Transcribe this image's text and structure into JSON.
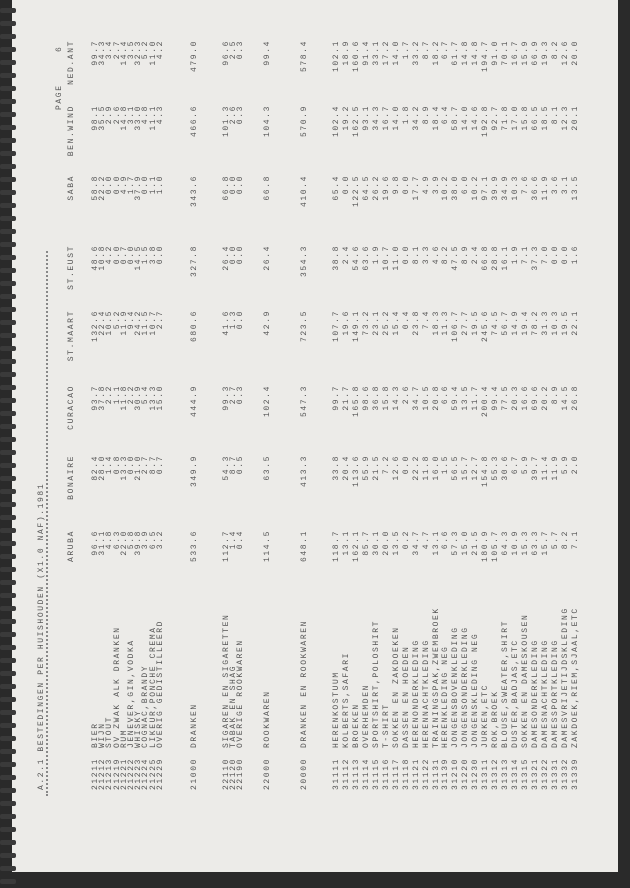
{
  "title": "A.2.1 BESTEDINGEN PER HUISHOUDEN (X1.0 NAF).1981",
  "page_label": "PAGE",
  "page_number": "6",
  "columns": [
    "ARUBA",
    "BONAIRE",
    "CURACAO",
    "ST.MAART",
    "ST.EUST",
    "SABA",
    "BEN.WIND",
    "NED.ANT"
  ],
  "sections": [
    {
      "rows": [
        {
          "code": "21211",
          "label": "BIER",
          "values": [
            "96.6",
            "82.4",
            "93.7",
            "132.6",
            "48.6",
            "58.8",
            "98.1",
            "99.7"
          ]
        },
        {
          "code": "21212",
          "label": "WIJN",
          "values": [
            "31.1",
            "28.0",
            "37.8",
            "22.4",
            "10.8",
            "22.2",
            "35.5",
            "34.3"
          ]
        },
        {
          "code": "21213",
          "label": "STOUT",
          "values": [
            "4.8",
            "1.4",
            "2.2",
            "10.5",
            "4.2",
            "0.0",
            "2.9",
            "3.4"
          ]
        },
        {
          "code": "21219",
          "label": "OV ZWAK ALK DRANKEN",
          "values": [
            "6.3",
            "0.8",
            "1.1",
            "5.2",
            "0.0",
            "0.0",
            "2.6",
            "2.7"
          ]
        },
        {
          "code": "21221",
          "label": "RUM",
          "values": [
            "22.0",
            "13.3",
            "11.8",
            "11.9",
            "0.7",
            "4.9",
            "14.8",
            "14.4"
          ]
        },
        {
          "code": "21222",
          "label": "JENEVER,GIN,VODKA",
          "values": [
            "5.8",
            "0.0",
            "2.2",
            "9.4",
            "0.0",
            "1.7",
            "3.1",
            "3.5"
          ]
        },
        {
          "code": "21223",
          "label": "WHISKY",
          "values": [
            "39.8",
            "21.0",
            "30.9",
            "24.2",
            "14.5",
            "37.9",
            "33.0",
            "32.3"
          ]
        },
        {
          "code": "21224",
          "label": "COGNAC,BRANDY",
          "values": [
            "3.9",
            "2.7",
            "5.4",
            "11.5",
            "1.5",
            "0.0",
            "4.8",
            "5.2"
          ]
        },
        {
          "code": "21225",
          "label": "LIKEUR,PONCHE CREMA",
          "values": [
            "6.5",
            "8.7",
            "13.3",
            "10.7",
            "3.8",
            "1.1",
            "11.1",
            "11.0"
          ]
        },
        {
          "code": "21229",
          "label": "OVERIG GEDISTILLEERD",
          "values": [
            "3.2",
            "0.7",
            "15.0",
            "2.7",
            "0.0",
            "1.0",
            "4.3",
            "4.2"
          ]
        }
      ]
    },
    {
      "rows": [
        {
          "code": "21000",
          "label": "DRANKEN",
          "values": [
            "533.6",
            "349.9",
            "444.9",
            "680.6",
            "327.8",
            "343.6",
            "466.6",
            "479.0"
          ]
        }
      ]
    },
    {
      "rows": [
        {
          "code": "22110",
          "label": "SIGAREN EN SIGARETTEN",
          "values": [
            "112.7",
            "54.3",
            "99.3",
            "41.6",
            "26.4",
            "66.8",
            "101.3",
            "96.6"
          ]
        },
        {
          "code": "22120",
          "label": "TABAK EN SHAG",
          "values": [
            "1.4",
            "8.7",
            "2.7",
            "1.3",
            "0.0",
            "0.0",
            "2.6",
            "2.5"
          ]
        },
        {
          "code": "22190",
          "label": "OVERIGE ROOKWAREN",
          "values": [
            "0.4",
            "0.5",
            "0.3",
            "0.0",
            "0.0",
            "0.0",
            "0.3",
            "0.3"
          ]
        }
      ]
    },
    {
      "rows": [
        {
          "code": "22000",
          "label": "ROOKWAREN",
          "values": [
            "114.5",
            "63.5",
            "102.4",
            "42.9",
            "26.4",
            "66.8",
            "104.3",
            "99.4"
          ]
        }
      ]
    },
    {
      "rows": [
        {
          "code": "20000",
          "label": "DRANKEN EN ROOKWAREN",
          "values": [
            "648.1",
            "413.3",
            "547.3",
            "723.5",
            "354.3",
            "410.4",
            "570.9",
            "578.4"
          ]
        }
      ]
    },
    {
      "rows": [
        {
          "code": "31111",
          "label": "HERENKOSTUUM",
          "values": [
            "118.7",
            "33.8",
            "99.7",
            "107.7",
            "38.8",
            "65.4",
            "102.4",
            "102.1"
          ]
        },
        {
          "code": "31112",
          "label": "KOLBERTS,SAFARI",
          "values": [
            "13.1",
            "20.4",
            "21.7",
            "19.6",
            "2.4",
            "0.0",
            "19.2",
            "18.9"
          ]
        },
        {
          "code": "31113",
          "label": "BROEKEN",
          "values": [
            "162.1",
            "113.6",
            "165.8",
            "149.1",
            "54.6",
            "122.5",
            "162.5",
            "160.6"
          ]
        },
        {
          "code": "31114",
          "label": "OVERHEMDEN",
          "values": [
            "85.7",
            "55.9",
            "98.6",
            "73.2",
            "63.6",
            "64.5",
            "93.1",
            "91.4"
          ]
        },
        {
          "code": "31115",
          "label": "SPORTSHIRT,POLOSHIRT",
          "values": [
            "30.1",
            "21.5",
            "36.8",
            "23.1",
            "1.9",
            "26.2",
            "34.3",
            "33.1"
          ]
        },
        {
          "code": "31116",
          "label": "T-SHIRT",
          "values": [
            "20.0",
            "7.2",
            "15.8",
            "25.2",
            "10.7",
            "19.6",
            "16.7",
            "17.2"
          ]
        },
        {
          "code": "31117",
          "label": "SOKKEN EN ZAKDOEKEN",
          "values": [
            "13.5",
            "12.6",
            "14.3",
            "15.4",
            "11.0",
            "9.8",
            "14.0",
            "14.0"
          ]
        },
        {
          "code": "31118",
          "label": "DASSEN EN HOEDEN",
          "values": [
            "0.2",
            "0.0",
            "2.6",
            "0.4",
            "0.0",
            "0.0",
            "1.8",
            "1.7"
          ]
        },
        {
          "code": "31121",
          "label": "HERENONDERKLEDING",
          "values": [
            "34.7",
            "22.2",
            "34.7",
            "23.8",
            "8.1",
            "17.7",
            "34.2",
            "33.2"
          ]
        },
        {
          "code": "31122",
          "label": "HERENNACHTKLEDING",
          "values": [
            "4.7",
            "11.8",
            "10.5",
            "7.4",
            "3.3",
            "4.9",
            "8.9",
            "8.7"
          ]
        },
        {
          "code": "31131",
          "label": "TRAININGSPAK,ZWEMBROEK",
          "values": [
            "13.1",
            "16.0",
            "20.8",
            "18.3",
            "4.6",
            "3.9",
            "18.4",
            "18.2"
          ]
        },
        {
          "code": "31139",
          "label": "HERENKLEDING NEG",
          "values": [
            "6.6",
            "1.5",
            "6.6",
            "11.3",
            "8.2",
            "10.2",
            "6.4",
            "6.7"
          ]
        },
        {
          "code": "31210",
          "label": "JONGENSBOVENKLEDING",
          "values": [
            "57.3",
            "56.5",
            "59.4",
            "106.7",
            "47.5",
            "38.0",
            "58.7",
            "61.7"
          ]
        },
        {
          "code": "31220",
          "label": "JONGENSONDERKLEDING",
          "values": [
            "15.0",
            "15.7",
            "13.5",
            "27.7",
            "8.9",
            "6.0",
            "14.0",
            "14.8"
          ]
        },
        {
          "code": "31230",
          "label": "JONGENSKLEDING NEG",
          "values": [
            "21.5",
            "12.7",
            "11.7",
            "19.5",
            "2.4",
            "10.2",
            "14.6",
            "14.8"
          ]
        },
        {
          "code": "31311",
          "label": "JURKEN,ETC",
          "values": [
            "180.9",
            "154.8",
            "200.4",
            "245.6",
            "66.8",
            "97.1",
            "192.8",
            "194.7"
          ]
        },
        {
          "code": "31312",
          "label": "ROK,BROEK",
          "values": [
            "105.7",
            "55.3",
            "99.4",
            "74.5",
            "28.8",
            "39.9",
            "92.7",
            "91.0"
          ]
        },
        {
          "code": "31313",
          "label": "BLOUSE,SWEATER,SHIRT",
          "values": [
            "64.3",
            "30.6",
            "77.5",
            "56.7",
            "16.1",
            "34.9",
            "71.8",
            "70.1"
          ]
        },
        {
          "code": "31314",
          "label": "DUSTER,BADJAS,ETC",
          "values": [
            "10.9",
            "6.7",
            "20.3",
            "14.9",
            "1.9",
            "10.3",
            "17.0",
            "16.7"
          ]
        },
        {
          "code": "31315",
          "label": "SOKKEN EN DAMESKOUSEN",
          "values": [
            "15.3",
            "5.9",
            "16.6",
            "19.4",
            "7.1",
            "7.6",
            "15.8",
            "15.9"
          ]
        },
        {
          "code": "31321",
          "label": "DAMESONDERKLEDING",
          "values": [
            "63.3",
            "39.7",
            "69.6",
            "78.2",
            "37.3",
            "36.6",
            "66.5",
            "66.9"
          ]
        },
        {
          "code": "31322",
          "label": "DAMESNACHTKLEDING",
          "values": [
            "15.7",
            "11.4",
            "20.2",
            "31.3",
            "7.0",
            "11.9",
            "18.5",
            "19.3"
          ]
        },
        {
          "code": "31331",
          "label": "DAMESSPORTKLEDING",
          "values": [
            "5.7",
            "11.9",
            "8.9",
            "10.3",
            "0.0",
            "3.6",
            "8.1",
            "8.2"
          ]
        },
        {
          "code": "31332",
          "label": "DAMESVRIJETIJDSKLEDING",
          "values": [
            "8.2",
            "5.9",
            "14.5",
            "19.5",
            "0.0",
            "3.1",
            "12.3",
            "12.6"
          ]
        },
        {
          "code": "31339",
          "label": "ZAKDOEK,RIEM,SJAAL,ETC",
          "values": [
            "7.1",
            "2.0",
            "26.8",
            "22.1",
            "1.6",
            "13.5",
            "20.1",
            "20.0"
          ]
        }
      ]
    }
  ]
}
